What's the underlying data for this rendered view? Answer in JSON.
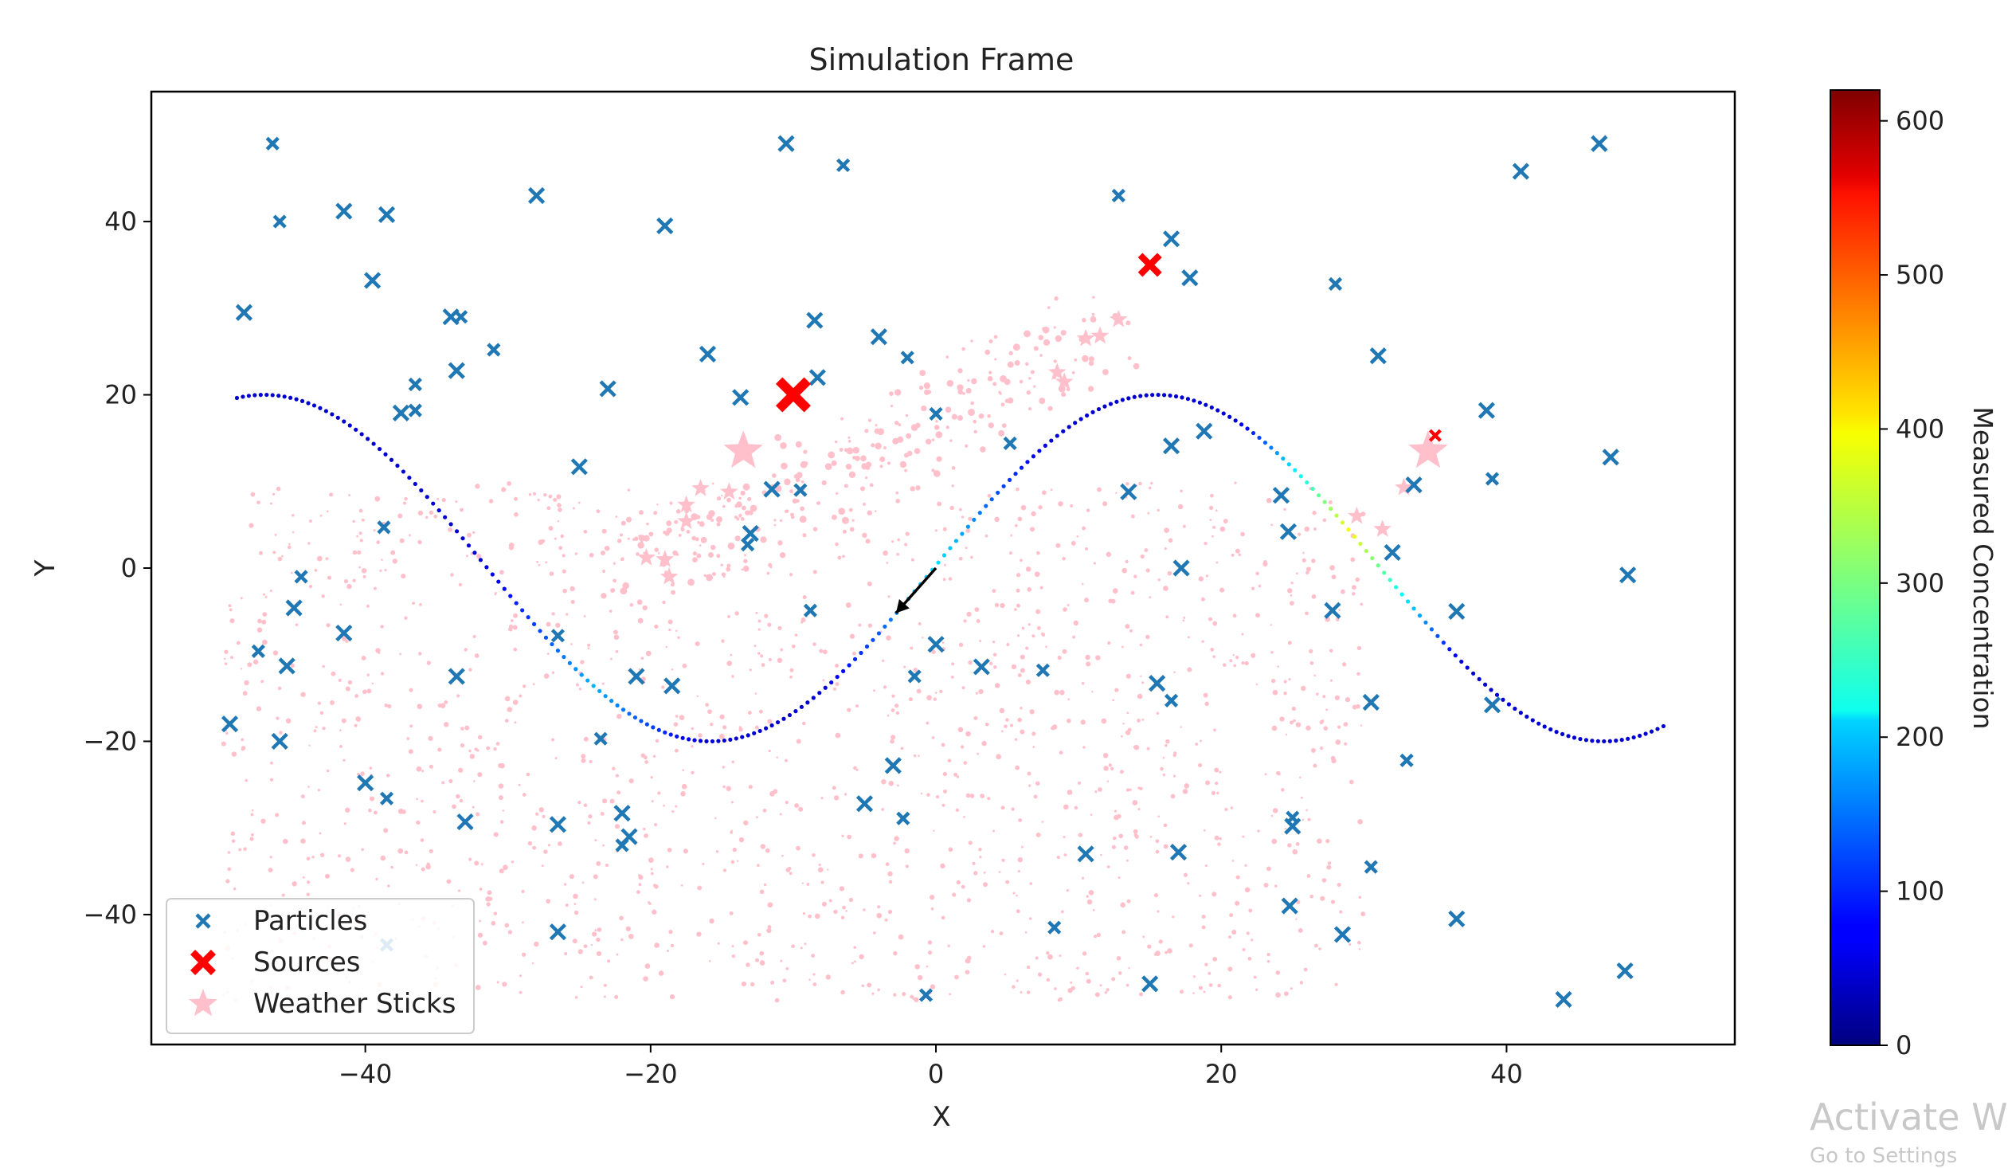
{
  "chart_data": {
    "type": "scatter",
    "title": "Simulation Frame",
    "xlabel": "X",
    "ylabel": "Y",
    "xlim": [
      -55,
      56
    ],
    "ylim": [
      -55,
      55
    ],
    "xticks": [
      -40,
      -20,
      0,
      20,
      40
    ],
    "yticks": [
      -40,
      -20,
      0,
      20,
      40
    ],
    "grid": false,
    "legend_position": "lower-left",
    "legend": [
      {
        "label": "Particles",
        "marker": "x",
        "color": "#1f77b4"
      },
      {
        "label": "Sources",
        "marker": "X",
        "color": "#ff0000"
      },
      {
        "label": "Weather Sticks",
        "marker": "*",
        "color": "#ffc0cb"
      }
    ],
    "colorbar": {
      "label": "Measured Concentration",
      "colormap": "jet",
      "min": 0,
      "max": 620,
      "ticks": [
        0,
        100,
        200,
        300,
        400,
        500,
        600
      ]
    },
    "particles": [
      [
        -46.5,
        49
      ],
      [
        -10.5,
        49
      ],
      [
        46.5,
        49
      ],
      [
        -6.5,
        46.5
      ],
      [
        41,
        45.8
      ],
      [
        -28,
        43
      ],
      [
        12.8,
        43
      ],
      [
        -41.5,
        41.2
      ],
      [
        -38.5,
        40.8
      ],
      [
        -46,
        40
      ],
      [
        -19,
        39.5
      ],
      [
        16.5,
        38
      ],
      [
        15,
        35
      ],
      [
        -39.5,
        33.2
      ],
      [
        17.8,
        33.5
      ],
      [
        28,
        32.8
      ],
      [
        -48.5,
        29.5
      ],
      [
        -34,
        29
      ],
      [
        -33.3,
        29
      ],
      [
        -8.5,
        28.6
      ],
      [
        -4,
        26.7
      ],
      [
        -31,
        25.2
      ],
      [
        -16,
        24.7
      ],
      [
        31,
        24.5
      ],
      [
        -2,
        24.3
      ],
      [
        -33.6,
        22.8
      ],
      [
        -8.3,
        22
      ],
      [
        -36.5,
        21.2
      ],
      [
        -23,
        20.7
      ],
      [
        -13.7,
        19.7
      ],
      [
        -36.5,
        18.2
      ],
      [
        -37.5,
        17.9
      ],
      [
        38.6,
        18.2
      ],
      [
        0,
        17.8
      ],
      [
        18.8,
        15.8
      ],
      [
        16.5,
        14.1
      ],
      [
        5.2,
        14.4
      ],
      [
        47.3,
        12.8
      ],
      [
        -25,
        11.7
      ],
      [
        39,
        10.3
      ],
      [
        33.5,
        9.6
      ],
      [
        -11.5,
        9.1
      ],
      [
        -9.5,
        9
      ],
      [
        13.5,
        8.8
      ],
      [
        24.2,
        8.4
      ],
      [
        -38.7,
        4.7
      ],
      [
        24.7,
        4.2
      ],
      [
        -13,
        4
      ],
      [
        -13.2,
        2.7
      ],
      [
        32,
        1.8
      ],
      [
        17.2,
        0
      ],
      [
        -44.5,
        -1
      ],
      [
        48.5,
        -0.8
      ],
      [
        -45,
        -4.6
      ],
      [
        -8.8,
        -4.9
      ],
      [
        27.8,
        -4.9
      ],
      [
        36.5,
        -5
      ],
      [
        -26.5,
        -7.8
      ],
      [
        -41.5,
        -7.5
      ],
      [
        0,
        -8.8
      ],
      [
        -47.5,
        -9.6
      ],
      [
        -45.5,
        -11.3
      ],
      [
        3.2,
        -11.4
      ],
      [
        7.5,
        -11.8
      ],
      [
        -33.6,
        -12.5
      ],
      [
        -21,
        -12.5
      ],
      [
        -1.5,
        -12.5
      ],
      [
        -18.5,
        -13.6
      ],
      [
        15.5,
        -13.3
      ],
      [
        16.5,
        -15.3
      ],
      [
        30.5,
        -15.5
      ],
      [
        39,
        -15.8
      ],
      [
        -23.5,
        -19.7
      ],
      [
        -46,
        -20
      ],
      [
        -49.5,
        -18
      ],
      [
        33,
        -22.2
      ],
      [
        -3,
        -22.8
      ],
      [
        -40,
        -24.8
      ],
      [
        -38.5,
        -26.6
      ],
      [
        -5,
        -27.2
      ],
      [
        -22,
        -28.3
      ],
      [
        -2.3,
        -28.9
      ],
      [
        -33,
        -29.3
      ],
      [
        -26.5,
        -29.6
      ],
      [
        25,
        -28.8
      ],
      [
        25,
        -29.8
      ],
      [
        -21.5,
        -31
      ],
      [
        -22,
        -32
      ],
      [
        10.5,
        -33
      ],
      [
        17,
        -32.8
      ],
      [
        30.5,
        -34.5
      ],
      [
        24.8,
        -39
      ],
      [
        36.5,
        -40.5
      ],
      [
        8.3,
        -41.5
      ],
      [
        -26.5,
        -42
      ],
      [
        28.5,
        -42.3
      ],
      [
        -38.5,
        -43.5
      ],
      [
        48.3,
        -46.5
      ],
      [
        15,
        -48
      ],
      [
        -0.7,
        -49.3
      ],
      [
        44,
        -49.8
      ]
    ],
    "sources": [
      {
        "x": -10,
        "y": 20,
        "size": "large"
      },
      {
        "x": 15,
        "y": 35,
        "size": "medium"
      },
      {
        "x": 35,
        "y": 15.3,
        "size": "small"
      }
    ],
    "weather_sticks": [
      [
        -13.5,
        13.5
      ],
      [
        34.5,
        13.5
      ],
      [
        11.5,
        26.8
      ],
      [
        10.5,
        26.5
      ],
      [
        12.8,
        28.7
      ],
      [
        8.5,
        22.6
      ],
      [
        9,
        21.5
      ],
      [
        -16.5,
        9.2
      ],
      [
        -17.5,
        7.3
      ],
      [
        -17.5,
        5.4
      ],
      [
        -19,
        1
      ],
      [
        -20.3,
        1.2
      ],
      [
        -18.7,
        -1
      ],
      [
        -14.5,
        8.8
      ],
      [
        29.5,
        6
      ],
      [
        31.3,
        4.5
      ],
      [
        32.8,
        9.3
      ]
    ],
    "sensor_path": {
      "description_curve": "y = 20*sin(2*pi*x/62 + phase)",
      "x_range": [
        -49,
        51
      ],
      "amplitude": 20,
      "peaks_x": [
        -47,
        15.5
      ],
      "troughs_x": [
        -15.7,
        46.7
      ],
      "concentration_max": 350
    },
    "wind_arrow": {
      "from": [
        0,
        0
      ],
      "to": [
        -2.8,
        -5.2
      ]
    },
    "watermark": {
      "line1": "Activate Wi",
      "line2": "Go to Settings"
    }
  }
}
